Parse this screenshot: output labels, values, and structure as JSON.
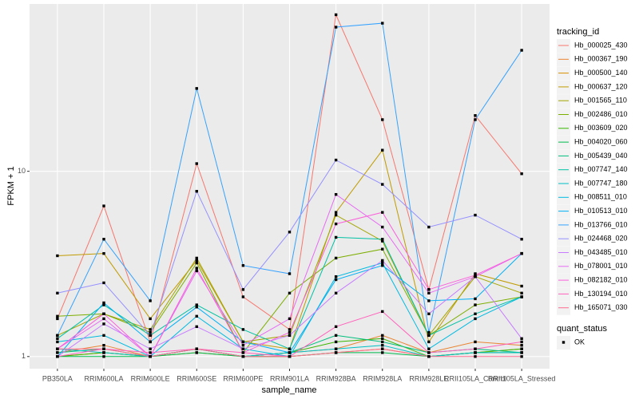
{
  "chart_data": {
    "type": "line",
    "x_label": "sample_name",
    "y_label": "FPKM + 1",
    "categories": [
      "PB350LA",
      "RRIM600LA",
      "RRIM600LE",
      "RRIM600SE",
      "RRIM600PE",
      "RRIM901LA",
      "RRIM928BA",
      "RRIM928LA",
      "RRIM928LE",
      "RRII105LA_Control",
      "RRII105LA_Stressed"
    ],
    "log_y": true,
    "ylim": [
      0.86,
      80
    ],
    "yticks": [
      1,
      10
    ],
    "grid": true,
    "legend_title": "tracking_id",
    "legend_position": "right",
    "point_legend": {
      "title": "quant_status",
      "labels": [
        "OK"
      ],
      "color": "#000000"
    },
    "series": [
      {
        "name": "Hb_000025_430",
        "color": "#F8766D",
        "values": [
          1.6,
          6.5,
          1.2,
          11,
          2.1,
          1.4,
          70,
          19,
          2.3,
          20,
          9.7
        ]
      },
      {
        "name": "Hb_000367_190",
        "color": "#EA8331",
        "values": [
          1.05,
          1.15,
          1.0,
          1.1,
          1.0,
          1.05,
          1.1,
          1.3,
          1.05,
          1.2,
          1.15
        ]
      },
      {
        "name": "Hb_000500_140",
        "color": "#D89000",
        "values": [
          1.0,
          1.05,
          1.0,
          1.05,
          1.0,
          1.0,
          1.05,
          1.1,
          1.0,
          1.05,
          1.1
        ]
      },
      {
        "name": "Hb_000637_120",
        "color": "#C09B00",
        "values": [
          3.5,
          3.6,
          1.6,
          3.3,
          1.2,
          1.1,
          6,
          13,
          1.2,
          2.8,
          2.4
        ]
      },
      {
        "name": "Hb_001565_110",
        "color": "#A3A500",
        "values": [
          1.3,
          1.7,
          1.4,
          3.4,
          1.2,
          1.3,
          5.8,
          4.2,
          1.3,
          2.7,
          2.2
        ]
      },
      {
        "name": "Hb_002486_010",
        "color": "#7CAE00",
        "values": [
          1.65,
          1.7,
          1.35,
          3.2,
          1.05,
          2.2,
          3.4,
          3.8,
          1.3,
          1.9,
          2.1
        ]
      },
      {
        "name": "Hb_003609_020",
        "color": "#39B600",
        "values": [
          1.0,
          1.05,
          1.0,
          1.1,
          1.0,
          1.05,
          1.2,
          1.25,
          1.0,
          1.05,
          1.1
        ]
      },
      {
        "name": "Hb_004020_060",
        "color": "#00BB4E",
        "values": [
          1.0,
          1.0,
          1.0,
          1.05,
          1.0,
          1.0,
          1.05,
          1.05,
          1.0,
          1.05,
          1.05
        ]
      },
      {
        "name": "Hb_005439_040",
        "color": "#00BF7D",
        "values": [
          1.05,
          1.1,
          1.0,
          1.1,
          1.0,
          1.05,
          1.3,
          1.2,
          1.05,
          1.1,
          1.05
        ]
      },
      {
        "name": "Hb_007747_140",
        "color": "#00C1A3",
        "values": [
          1.25,
          1.9,
          1.3,
          1.9,
          1.4,
          1.1,
          4.4,
          4.3,
          1.3,
          1.7,
          2.1
        ]
      },
      {
        "name": "Hb_007747_180",
        "color": "#00BFC4",
        "values": [
          1.1,
          1.05,
          1.0,
          1.1,
          1.0,
          1.05,
          1.1,
          1.15,
          1.0,
          1.05,
          1.05
        ]
      },
      {
        "name": "Hb_008511_010",
        "color": "#00BAE0",
        "values": [
          1.2,
          1.3,
          1.0,
          1.65,
          1.1,
          1.0,
          2.7,
          3.2,
          1.1,
          1.6,
          2.1
        ]
      },
      {
        "name": "Hb_010513_010",
        "color": "#00B0F6",
        "values": [
          1.0,
          1.95,
          1.2,
          1.85,
          1.2,
          1.05,
          2.6,
          3.1,
          2.0,
          2.05,
          3.6
        ]
      },
      {
        "name": "Hb_013766_010",
        "color": "#35A2FF",
        "values": [
          1.3,
          4.3,
          2.0,
          28,
          3.1,
          2.8,
          60,
          63,
          1.35,
          19,
          45
        ]
      },
      {
        "name": "Hb_024468_020",
        "color": "#9590FF",
        "values": [
          2.2,
          2.5,
          1.3,
          7.8,
          2.3,
          4.7,
          11.5,
          8.5,
          5,
          5.8,
          4.3
        ]
      },
      {
        "name": "Hb_043485_010",
        "color": "#C77CFF",
        "values": [
          1.0,
          1.5,
          1.1,
          1.45,
          1.1,
          1.3,
          2.2,
          3.3,
          1.7,
          2.7,
          1.25
        ]
      },
      {
        "name": "Hb_078001_010",
        "color": "#E76BF3",
        "values": [
          1.1,
          1.6,
          1.0,
          2.9,
          1.15,
          1.6,
          7.5,
          5,
          2.2,
          2.7,
          3.6
        ]
      },
      {
        "name": "Hb_082182_010",
        "color": "#FA62DB",
        "values": [
          1.1,
          1.7,
          1.0,
          3.0,
          1.05,
          1.35,
          5.2,
          6,
          2.3,
          2.75,
          3.6
        ]
      },
      {
        "name": "Hb_130194_010",
        "color": "#FF62BC",
        "values": [
          1.0,
          1.1,
          1.05,
          1.1,
          1.05,
          1.0,
          1.45,
          1.75,
          1.05,
          1.1,
          1.2
        ]
      },
      {
        "name": "Hb_165071_030",
        "color": "#FF6C91",
        "values": [
          1.1,
          1.1,
          1.0,
          1.1,
          1.0,
          1.0,
          1.05,
          1.1,
          1.0,
          1.0,
          1.0
        ]
      }
    ]
  }
}
